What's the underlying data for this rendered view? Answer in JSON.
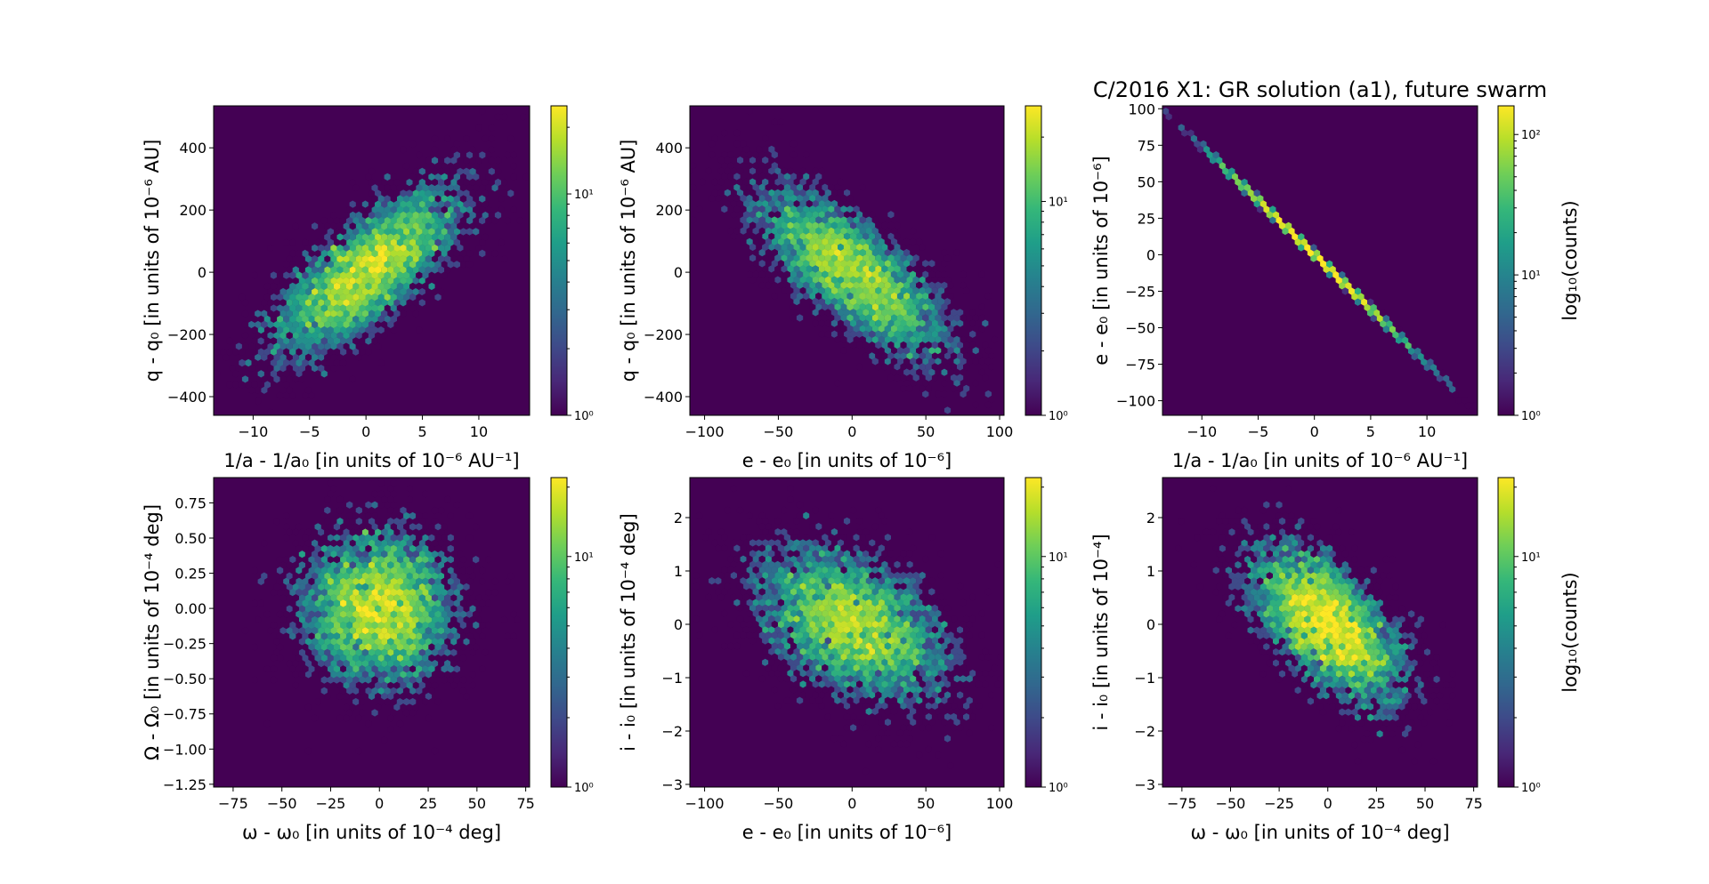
{
  "chart_data": [
    {
      "type": "heatmap",
      "subtype": "hexbin-log-counts",
      "title": "",
      "xlabel": "1/a - 1/a₀ [in units of 10⁻⁶ AU⁻¹]",
      "ylabel": "q - q₀ [in units of 10⁻⁶ AU]",
      "xlim": [
        -13.5,
        14.5
      ],
      "ylim": [
        -460,
        535
      ],
      "xticks": [
        -10,
        -5,
        0,
        5,
        10
      ],
      "xtick_labels": [
        "−10",
        "−5",
        "0",
        "5",
        "10"
      ],
      "yticks": [
        -400,
        -200,
        0,
        200,
        400
      ],
      "ytick_labels": [
        "−400",
        "−200",
        "0",
        "200",
        "400"
      ],
      "distribution": {
        "mean_x": 0,
        "mean_y": 0,
        "sd_x": 4.3,
        "sd_y": 140,
        "correlation": 0.75
      },
      "colorbar": {
        "scale": "log",
        "range": [
          1,
          25
        ],
        "ticks": [
          1,
          10
        ],
        "tick_labels": [
          "10⁰",
          "10¹"
        ],
        "label": ""
      }
    },
    {
      "type": "heatmap",
      "subtype": "hexbin-log-counts",
      "title": "",
      "xlabel": "e - e₀ [in units of 10⁻⁶]",
      "ylabel": "q - q₀ [in units of 10⁻⁶ AU]",
      "xlim": [
        -110,
        103
      ],
      "ylim": [
        -460,
        535
      ],
      "xticks": [
        -100,
        -50,
        0,
        50,
        100
      ],
      "xtick_labels": [
        "−100",
        "−50",
        "0",
        "50",
        "100"
      ],
      "yticks": [
        -400,
        -200,
        0,
        200,
        400
      ],
      "ytick_labels": [
        "−400",
        "−200",
        "0",
        "200",
        "400"
      ],
      "distribution": {
        "mean_x": 0,
        "mean_y": 0,
        "sd_x": 33,
        "sd_y": 140,
        "correlation": -0.75
      },
      "colorbar": {
        "scale": "log",
        "range": [
          1,
          28
        ],
        "ticks": [
          1,
          10
        ],
        "tick_labels": [
          "10⁰",
          "10¹"
        ],
        "label": ""
      }
    },
    {
      "type": "heatmap",
      "subtype": "hexbin-log-counts",
      "title": "C/2016 X1: GR solution (a1), future swarm",
      "xlabel": "1/a - 1/a₀ [in units of 10⁻⁶ AU⁻¹]",
      "ylabel": "e - e₀ [in units of 10⁻⁶]",
      "xlim": [
        -13.5,
        14.5
      ],
      "ylim": [
        -110,
        102
      ],
      "xticks": [
        -10,
        -5,
        0,
        5,
        10
      ],
      "xtick_labels": [
        "−10",
        "−5",
        "0",
        "5",
        "10"
      ],
      "yticks": [
        -100,
        -75,
        -50,
        -25,
        0,
        25,
        50,
        75,
        100
      ],
      "ytick_labels": [
        "−100",
        "−75",
        "−50",
        "−25",
        "0",
        "25",
        "50",
        "75",
        "100"
      ],
      "distribution": {
        "mean_x": 0,
        "mean_y": 0,
        "sd_x": 4.3,
        "sd_y": 32,
        "correlation": -1.0,
        "relation": "e - e0 ≈ -7.4 × (1/a - 1/a0)"
      },
      "colorbar": {
        "scale": "log",
        "range": [
          1,
          160
        ],
        "ticks": [
          1,
          10,
          100
        ],
        "tick_labels": [
          "10⁰",
          "10¹",
          "10²"
        ],
        "label": "log₁₀(counts)"
      }
    },
    {
      "type": "heatmap",
      "subtype": "hexbin-log-counts",
      "title": "",
      "xlabel": "ω - ω₀ [in units of 10⁻⁴ deg]",
      "ylabel": "Ω - Ω₀ [in units of 10⁻⁴ deg]",
      "xlim": [
        -85,
        77
      ],
      "ylim": [
        -1.27,
        0.93
      ],
      "xticks": [
        -75,
        -50,
        -25,
        0,
        25,
        50,
        75
      ],
      "xtick_labels": [
        "−75",
        "−50",
        "−25",
        "0",
        "25",
        "50",
        "75"
      ],
      "yticks": [
        -1.25,
        -1.0,
        -0.75,
        -0.5,
        -0.25,
        0.0,
        0.25,
        0.5,
        0.75
      ],
      "ytick_labels": [
        "−1.25",
        "−1.00",
        "−0.75",
        "−0.50",
        "−0.25",
        "0.00",
        "0.25",
        "0.50",
        "0.75"
      ],
      "distribution": {
        "mean_x": 0,
        "mean_y": 0,
        "sd_x": 20,
        "sd_y": 0.28,
        "correlation": 0.0
      },
      "colorbar": {
        "scale": "log",
        "range": [
          1,
          22
        ],
        "ticks": [
          1,
          10
        ],
        "tick_labels": [
          "10⁰",
          "10¹"
        ],
        "label": ""
      }
    },
    {
      "type": "heatmap",
      "subtype": "hexbin-log-counts",
      "title": "",
      "xlabel": "e - e₀ [in units of 10⁻⁶]",
      "ylabel": "i - i₀ [in units of 10⁻⁴ deg]",
      "xlim": [
        -110,
        103
      ],
      "ylim": [
        -3.05,
        2.75
      ],
      "xticks": [
        -100,
        -50,
        0,
        50,
        100
      ],
      "xtick_labels": [
        "−100",
        "−50",
        "0",
        "50",
        "100"
      ],
      "yticks": [
        -3,
        -2,
        -1,
        0,
        1,
        2
      ],
      "ytick_labels": [
        "−3",
        "−2",
        "−1",
        "0",
        "1",
        "2"
      ],
      "distribution": {
        "mean_x": 0,
        "mean_y": 0,
        "sd_x": 33,
        "sd_y": 0.75,
        "correlation": -0.45
      },
      "colorbar": {
        "scale": "log",
        "range": [
          1,
          22
        ],
        "ticks": [
          1,
          10
        ],
        "tick_labels": [
          "10⁰",
          "10¹"
        ],
        "label": ""
      }
    },
    {
      "type": "heatmap",
      "subtype": "hexbin-log-counts",
      "title": "",
      "xlabel": "ω - ω₀ [in units of 10⁻⁴ deg]",
      "ylabel": "i - i₀ [in units of 10⁻⁴]",
      "xlim": [
        -85,
        77
      ],
      "ylim": [
        -3.05,
        2.75
      ],
      "xticks": [
        -75,
        -50,
        -25,
        0,
        25,
        50,
        75
      ],
      "xtick_labels": [
        "−75",
        "−50",
        "−25",
        "0",
        "25",
        "50",
        "75"
      ],
      "yticks": [
        -3,
        -2,
        -1,
        0,
        1,
        2
      ],
      "ytick_labels": [
        "−3",
        "−2",
        "−1",
        "0",
        "1",
        "2"
      ],
      "distribution": {
        "mean_x": 0,
        "mean_y": 0,
        "sd_x": 20,
        "sd_y": 0.75,
        "correlation": -0.6
      },
      "colorbar": {
        "scale": "log",
        "range": [
          1,
          22
        ],
        "ticks": [
          1,
          10
        ],
        "tick_labels": [
          "10⁰",
          "10¹"
        ],
        "label": "log₁₀(counts)"
      }
    }
  ],
  "colormap": [
    "#440154",
    "#482878",
    "#3e4a89",
    "#31688e",
    "#26828e",
    "#1f9e89",
    "#35b779",
    "#6ece58",
    "#b5de2b",
    "#fde725"
  ],
  "figure": {
    "background": "#ffffff",
    "empty_bin_color": "#440154"
  }
}
